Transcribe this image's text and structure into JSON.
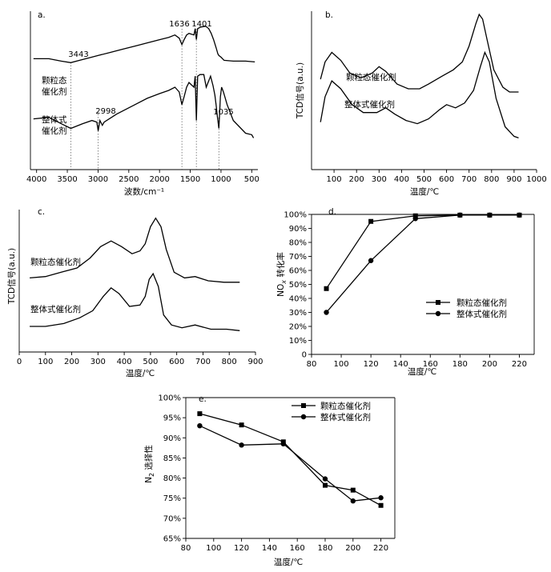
{
  "chart_data": [
    {
      "id": "a",
      "type": "line",
      "panel_label": "a.",
      "xlabel": "波数/cm⁻¹",
      "ylabel": "",
      "xlim": [
        4100,
        400
      ],
      "ylim": [
        0,
        10
      ],
      "x_ticks": [
        4000,
        3500,
        3000,
        2500,
        2000,
        1500,
        1000,
        500
      ],
      "series": [
        {
          "name": "颗粒态\n催化剂",
          "label_lines": [
            "颗粒态",
            "催化剂"
          ],
          "points": [
            [
              4050,
              7.0
            ],
            [
              3800,
              7.0
            ],
            [
              3600,
              6.85
            ],
            [
              3443,
              6.75
            ],
            [
              3300,
              6.9
            ],
            [
              3100,
              7.1
            ],
            [
              3000,
              7.2
            ],
            [
              2800,
              7.4
            ],
            [
              2600,
              7.6
            ],
            [
              2400,
              7.8
            ],
            [
              2200,
              8.0
            ],
            [
              2000,
              8.2
            ],
            [
              1850,
              8.35
            ],
            [
              1750,
              8.5
            ],
            [
              1680,
              8.3
            ],
            [
              1636,
              7.9
            ],
            [
              1600,
              8.2
            ],
            [
              1560,
              8.5
            ],
            [
              1520,
              8.6
            ],
            [
              1480,
              8.55
            ],
            [
              1440,
              8.5
            ],
            [
              1420,
              8.9
            ],
            [
              1401,
              8.2
            ],
            [
              1380,
              8.9
            ],
            [
              1330,
              9.0
            ],
            [
              1250,
              9.05
            ],
            [
              1200,
              8.9
            ],
            [
              1160,
              8.6
            ],
            [
              1120,
              8.2
            ],
            [
              1080,
              7.7
            ],
            [
              1050,
              7.3
            ],
            [
              1035,
              7.2
            ],
            [
              1000,
              7.1
            ],
            [
              950,
              6.9
            ],
            [
              800,
              6.85
            ],
            [
              600,
              6.85
            ],
            [
              450,
              6.8
            ]
          ]
        },
        {
          "name": "整体式\n催化剂",
          "label_lines": [
            "整体式",
            "催化剂"
          ],
          "points": [
            [
              4050,
              3.2
            ],
            [
              3800,
              3.3
            ],
            [
              3600,
              2.9
            ],
            [
              3443,
              2.6
            ],
            [
              3250,
              2.9
            ],
            [
              3100,
              3.1
            ],
            [
              3020,
              3.0
            ],
            [
              2998,
              2.45
            ],
            [
              2970,
              3.1
            ],
            [
              2930,
              2.8
            ],
            [
              2900,
              3.0
            ],
            [
              2700,
              3.5
            ],
            [
              2400,
              4.1
            ],
            [
              2200,
              4.5
            ],
            [
              2000,
              4.8
            ],
            [
              1850,
              5.0
            ],
            [
              1750,
              5.2
            ],
            [
              1680,
              4.9
            ],
            [
              1636,
              4.1
            ],
            [
              1600,
              4.6
            ],
            [
              1560,
              5.2
            ],
            [
              1520,
              5.5
            ],
            [
              1480,
              5.35
            ],
            [
              1440,
              5.2
            ],
            [
              1420,
              5.9
            ],
            [
              1401,
              3.1
            ],
            [
              1380,
              5.9
            ],
            [
              1340,
              6.0
            ],
            [
              1280,
              6.0
            ],
            [
              1240,
              5.2
            ],
            [
              1200,
              5.6
            ],
            [
              1170,
              5.9
            ],
            [
              1130,
              5.3
            ],
            [
              1100,
              4.7
            ],
            [
              1080,
              4.1
            ],
            [
              1060,
              3.4
            ],
            [
              1035,
              2.6
            ],
            [
              1010,
              4.6
            ],
            [
              990,
              5.2
            ],
            [
              960,
              4.9
            ],
            [
              900,
              4.1
            ],
            [
              800,
              3.1
            ],
            [
              600,
              2.3
            ],
            [
              500,
              2.2
            ],
            [
              470,
              2.0
            ]
          ]
        }
      ],
      "annotations": [
        {
          "text": "3443",
          "x": 3443
        },
        {
          "text": "2998",
          "x": 2998
        },
        {
          "text": "1636",
          "x": 1636
        },
        {
          "text": "1401",
          "x": 1401
        },
        {
          "text": "1035",
          "x": 1035
        }
      ]
    },
    {
      "id": "b",
      "type": "line",
      "panel_label": "b.",
      "xlabel": "温度/℃",
      "ylabel": "TCD信号(a.u.)",
      "xlim": [
        0,
        1000
      ],
      "ylim": [
        0,
        10
      ],
      "x_ticks": [
        100,
        200,
        300,
        400,
        500,
        600,
        700,
        800,
        900,
        1000
      ],
      "series": [
        {
          "name": "颗粒态催化剂",
          "points": [
            [
              40,
              5.7
            ],
            [
              60,
              6.8
            ],
            [
              90,
              7.4
            ],
            [
              130,
              6.9
            ],
            [
              170,
              6.1
            ],
            [
              220,
              5.8
            ],
            [
              270,
              6.1
            ],
            [
              300,
              6.5
            ],
            [
              330,
              6.2
            ],
            [
              380,
              5.4
            ],
            [
              430,
              5.1
            ],
            [
              480,
              5.1
            ],
            [
              520,
              5.4
            ],
            [
              580,
              5.9
            ],
            [
              630,
              6.3
            ],
            [
              670,
              6.8
            ],
            [
              700,
              7.8
            ],
            [
              730,
              9.2
            ],
            [
              745,
              9.8
            ],
            [
              760,
              9.5
            ],
            [
              780,
              8.2
            ],
            [
              810,
              6.3
            ],
            [
              850,
              5.2
            ],
            [
              880,
              4.9
            ],
            [
              920,
              4.9
            ]
          ]
        },
        {
          "name": "整体式催化剂",
          "points": [
            [
              40,
              3.0
            ],
            [
              60,
              4.6
            ],
            [
              90,
              5.6
            ],
            [
              130,
              5.1
            ],
            [
              180,
              4.1
            ],
            [
              230,
              3.6
            ],
            [
              290,
              3.6
            ],
            [
              330,
              3.9
            ],
            [
              370,
              3.5
            ],
            [
              420,
              3.1
            ],
            [
              470,
              2.9
            ],
            [
              520,
              3.2
            ],
            [
              570,
              3.8
            ],
            [
              600,
              4.1
            ],
            [
              640,
              3.9
            ],
            [
              680,
              4.2
            ],
            [
              720,
              5.0
            ],
            [
              750,
              6.5
            ],
            [
              770,
              7.4
            ],
            [
              790,
              6.8
            ],
            [
              820,
              4.5
            ],
            [
              860,
              2.7
            ],
            [
              900,
              2.1
            ],
            [
              920,
              2.0
            ]
          ]
        }
      ]
    },
    {
      "id": "c",
      "type": "line",
      "panel_label": "c.",
      "xlabel": "温度/℃",
      "ylabel": "TCD信号(a.u.)",
      "xlim": [
        0,
        900
      ],
      "ylim": [
        0,
        10
      ],
      "x_ticks": [
        0,
        100,
        200,
        300,
        400,
        500,
        600,
        700,
        800,
        900
      ],
      "series": [
        {
          "name": "颗粒态催化剂",
          "points": [
            [
              40,
              5.2
            ],
            [
              100,
              5.3
            ],
            [
              160,
              5.6
            ],
            [
              220,
              5.9
            ],
            [
              270,
              6.6
            ],
            [
              310,
              7.4
            ],
            [
              350,
              7.8
            ],
            [
              390,
              7.4
            ],
            [
              430,
              6.9
            ],
            [
              460,
              7.1
            ],
            [
              480,
              7.6
            ],
            [
              500,
              8.8
            ],
            [
              520,
              9.4
            ],
            [
              540,
              8.8
            ],
            [
              560,
              7.2
            ],
            [
              590,
              5.6
            ],
            [
              630,
              5.2
            ],
            [
              670,
              5.3
            ],
            [
              720,
              5.0
            ],
            [
              780,
              4.9
            ],
            [
              840,
              4.9
            ]
          ]
        },
        {
          "name": "整体式催化剂",
          "points": [
            [
              40,
              1.8
            ],
            [
              100,
              1.8
            ],
            [
              170,
              2.0
            ],
            [
              230,
              2.4
            ],
            [
              280,
              2.9
            ],
            [
              320,
              3.9
            ],
            [
              350,
              4.5
            ],
            [
              380,
              4.1
            ],
            [
              420,
              3.2
            ],
            [
              460,
              3.3
            ],
            [
              480,
              3.9
            ],
            [
              495,
              5.1
            ],
            [
              510,
              5.5
            ],
            [
              530,
              4.6
            ],
            [
              550,
              2.6
            ],
            [
              580,
              1.9
            ],
            [
              620,
              1.7
            ],
            [
              670,
              1.9
            ],
            [
              730,
              1.6
            ],
            [
              790,
              1.6
            ],
            [
              840,
              1.5
            ]
          ]
        }
      ]
    },
    {
      "id": "d",
      "type": "line",
      "panel_label": "d.",
      "xlabel": "温度/℃",
      "ylabel": "NOx 转化率",
      "ylabel_main": "NO",
      "ylabel_sub": "x",
      "ylabel_rest": " 转化率",
      "xlim": [
        80,
        230
      ],
      "ylim": [
        0,
        100
      ],
      "x_ticks": [
        80,
        100,
        120,
        140,
        160,
        180,
        200,
        220
      ],
      "y_ticks": [
        "0",
        "10%",
        "20%",
        "30%",
        "40%",
        "50%",
        "60%",
        "70%",
        "80%",
        "90%",
        "100%"
      ],
      "series": [
        {
          "name": "颗粒态催化剂",
          "marker": "square",
          "x": [
            90,
            120,
            150,
            180,
            200,
            220
          ],
          "y": [
            47,
            95,
            99,
            99.5,
            99.5,
            99.5
          ]
        },
        {
          "name": "整体式催化剂",
          "marker": "circle",
          "x": [
            90,
            120,
            150,
            180,
            200,
            220
          ],
          "y": [
            30,
            67,
            97,
            99.5,
            99.5,
            99.5
          ]
        }
      ],
      "legend": "right-middle"
    },
    {
      "id": "e",
      "type": "line",
      "panel_label": "e.",
      "xlabel": "温度/℃",
      "ylabel": "N2 选择性",
      "ylabel_main": "N",
      "ylabel_sub": "2",
      "ylabel_rest": " 选择性",
      "xlim": [
        80,
        230
      ],
      "ylim": [
        65,
        100
      ],
      "x_ticks": [
        80,
        100,
        120,
        140,
        160,
        180,
        200,
        220
      ],
      "y_ticks": [
        "65%",
        "70%",
        "75%",
        "80%",
        "85%",
        "90%",
        "95%",
        "100%"
      ],
      "series": [
        {
          "name": "颗粒态催化剂",
          "marker": "square",
          "x": [
            90,
            120,
            150,
            180,
            200,
            220
          ],
          "y": [
            96,
            93.2,
            89,
            78.2,
            77,
            73.2
          ]
        },
        {
          "name": "整体式催化剂",
          "marker": "circle",
          "x": [
            90,
            120,
            150,
            180,
            200,
            220
          ],
          "y": [
            93,
            88.2,
            88.5,
            79.8,
            74.3,
            75.1
          ]
        }
      ],
      "legend": "top-right"
    }
  ]
}
